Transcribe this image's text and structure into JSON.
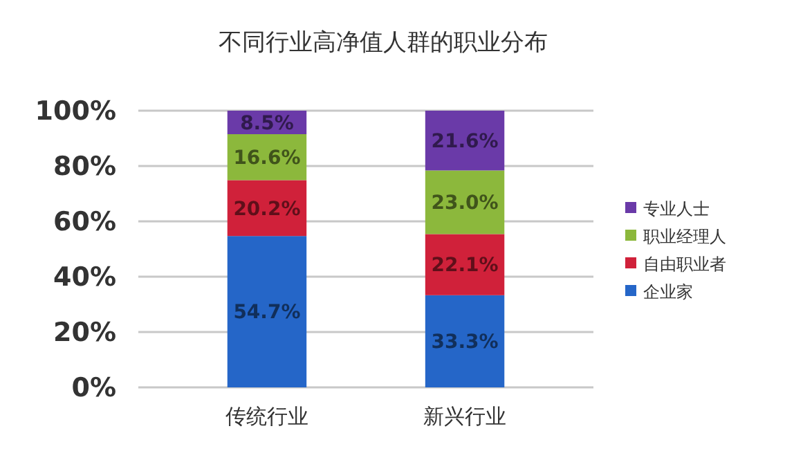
{
  "chart_data": {
    "type": "bar",
    "title": "不同行业高净值人群的职业分布",
    "categories": [
      "传统行业",
      "新兴行业"
    ],
    "stacked": true,
    "series": [
      {
        "name": "企业家",
        "color": "#2566c8",
        "values": [
          54.7,
          33.3
        ],
        "value_labels": [
          "54.7%",
          "33.3%"
        ]
      },
      {
        "name": "自由职业者",
        "color": "#d0213a",
        "values": [
          20.2,
          22.1
        ],
        "value_labels": [
          "20.2%",
          "22.1%"
        ]
      },
      {
        "name": "职业经理人",
        "color": "#8cb83c",
        "values": [
          16.6,
          23.0
        ],
        "value_labels": [
          "16.6%",
          "23.0%"
        ]
      },
      {
        "name": "专业人士",
        "color": "#6a3aa8",
        "values": [
          8.5,
          21.6
        ],
        "value_labels": [
          "8.5%",
          "21.6%"
        ]
      }
    ],
    "ylim": [
      0,
      100
    ],
    "yticks": [
      {
        "value": 0,
        "label": "0%"
      },
      {
        "value": 20,
        "label": "20%"
      },
      {
        "value": 40,
        "label": "40%"
      },
      {
        "value": 60,
        "label": "60%"
      },
      {
        "value": 80,
        "label": "80%"
      },
      {
        "value": 100,
        "label": "100%"
      }
    ],
    "grid": "y",
    "legend": "right"
  }
}
